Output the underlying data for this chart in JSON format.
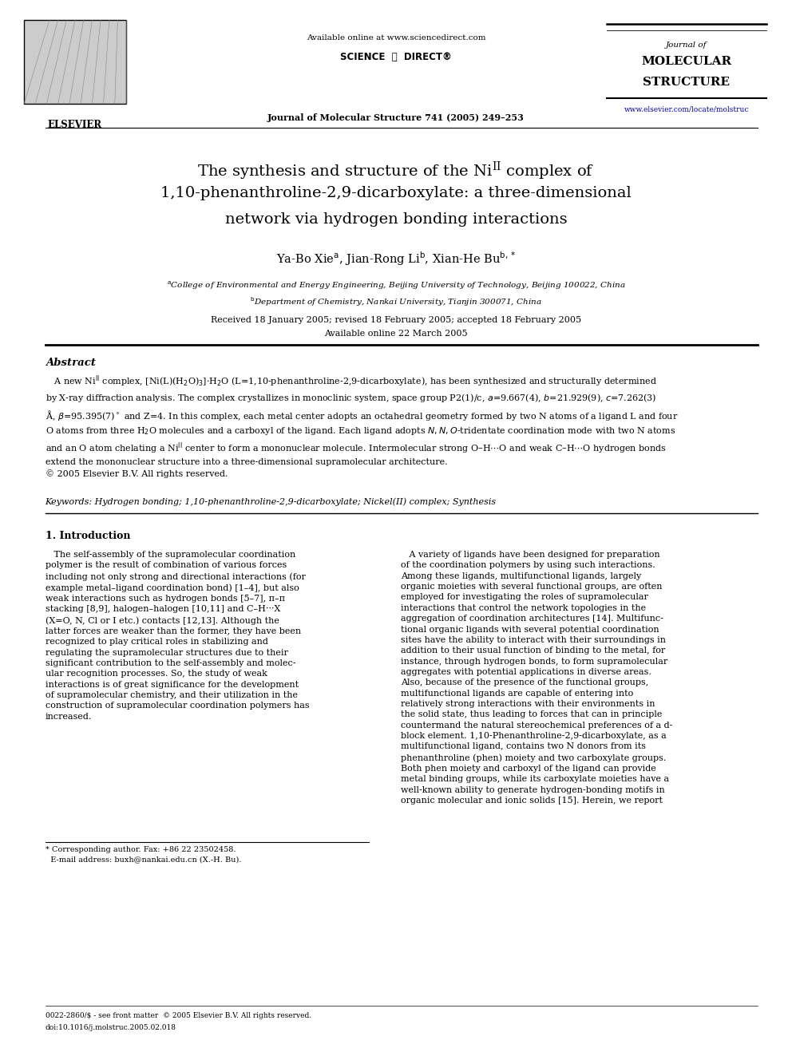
{
  "bg_color": "#ffffff",
  "page_width": 9.92,
  "page_height": 13.23,
  "dpi": 100,
  "lm": 0.057,
  "rm": 0.957,
  "header": {
    "available_online": "Available online at www.sciencedirect.com",
    "sciencedirect": "SCIENCE ⓓ DIRECT®",
    "journal_ref": "Journal of Molecular Structure 741 (2005) 249–253",
    "journal_line1": "Journal of",
    "journal_line2": "MOLECULAR",
    "journal_line3": "STRUCTURE",
    "journal_url": "www.elsevier.com/locate/molstruc",
    "elsevier": "ELSEVIER"
  },
  "title_line1": "The synthesis and structure of the Ni$^{\\mathregular{II}}$ complex of",
  "title_line2": "1,10-phenanthroline-2,9-dicarboxylate: a three-dimensional",
  "title_line3": "network via hydrogen bonding interactions",
  "authors": "Ya-Bo Xie$^{\\mathrm{a}}$, Jian-Rong Li$^{\\mathrm{b}}$, Xian-He Bu$^{\\mathrm{b,*}}$",
  "affil_a": "$^{\\mathrm{a}}$College of Environmental and Energy Engineering, Beijing University of Technology, Beijing 100022, China",
  "affil_b": "$^{\\mathrm{b}}$Department of Chemistry, Nankai University, Tianjin 300071, China",
  "dates1": "Received 18 January 2005; revised 18 February 2005; accepted 18 February 2005",
  "dates2": "Available online 22 March 2005",
  "abstract_head": "Abstract",
  "abstract_body": "   A new Ni$^{\\mathrm{II}}$ complex, [Ni(L)(H$_2$O)$_3$]$\\cdot$H$_2$O (L=1,10-phenanthroline-2,9-dicarboxylate), has been synthesized and structurally determined\nby X-ray diffraction analysis. The complex crystallizes in monoclinic system, space group P2(1)/c, $a$=9.667(4), $b$=21.929(9), $c$=7.262(3)\nÅ, $\\beta$=95.395(7)$^\\circ$ and Z=4. In this complex, each metal center adopts an octahedral geometry formed by two N atoms of a ligand L and four\nO atoms from three H$_2$O molecules and a carboxyl of the ligand. Each ligand adopts $N,N,O$-tridentate coordination mode with two N atoms\nand an O atom chelating a Ni$^{\\mathrm{II}}$ center to form a mononuclear molecule. Intermolecular strong O–H$\\cdots$O and weak C–H$\\cdots$O hydrogen bonds\nextend the mononuclear structure into a three-dimensional supramolecular architecture.\n© 2005 Elsevier B.V. All rights reserved.",
  "keywords": "Keywords: Hydrogen bonding; 1,10-phenanthroline-2,9-dicarboxylate; Nickel(II) complex; Synthesis",
  "sec1_title": "1. Introduction",
  "col1_text": "   The self-assembly of the supramolecular coordination\npolymer is the result of combination of various forces\nincluding not only strong and directional interactions (for\nexample metal–ligand coordination bond) [1–4], but also\nweak interactions such as hydrogen bonds [5–7], π–π\nstacking [8,9], halogen–halogen [10,11] and C–H···X\n(X=O, N, Cl or I etc.) contacts [12,13]. Although the\nlatter forces are weaker than the former, they have been\nrecognized to play critical roles in stabilizing and\nregulating the supramolecular structures due to their\nsignificant contribution to the self-assembly and molec-\nular recognition processes. So, the study of weak\ninteractions is of great significance for the development\nof supramolecular chemistry, and their utilization in the\nconstruction of supramolecular coordination polymers has\nincreased.",
  "col2_text": "   A variety of ligands have been designed for preparation\nof the coordination polymers by using such interactions.\nAmong these ligands, multifunctional ligands, largely\norganic moieties with several functional groups, are often\nemployed for investigating the roles of supramolecular\ninteractions that control the network topologies in the\naggregation of coordination architectures [14]. Multifunc-\ntional organic ligands with several potential coordination\nsites have the ability to interact with their surroundings in\naddition to their usual function of binding to the metal, for\ninstance, through hydrogen bonds, to form supramolecular\naggregates with potential applications in diverse areas.\nAlso, because of the presence of the functional groups,\nmultifunctional ligands are capable of entering into\nrelatively strong interactions with their environments in\nthe solid state, thus leading to forces that can in principle\ncountermand the natural stereochemical preferences of a d-\nblock element. 1,10-Phenanthroline-2,9-dicarboxylate, as a\nmultifunctional ligand, contains two N donors from its\nphenanthroline (phen) moiety and two carboxylate groups.\nBoth phen moiety and carboxyl of the ligand can provide\nmetal binding groups, while its carboxylate moieties have a\nwell-known ability to generate hydrogen-bonding motifs in\norganic molecular and ionic solids [15]. Herein, we report",
  "footnote": "* Corresponding author. Fax: +86 22 23502458.\n  E-mail address: buxh@nankai.edu.cn (X.-H. Bu).",
  "bottom1": "0022-2860/$ - see front matter  © 2005 Elsevier B.V. All rights reserved.",
  "bottom2": "doi:10.1016/j.molstruc.2005.02.018"
}
